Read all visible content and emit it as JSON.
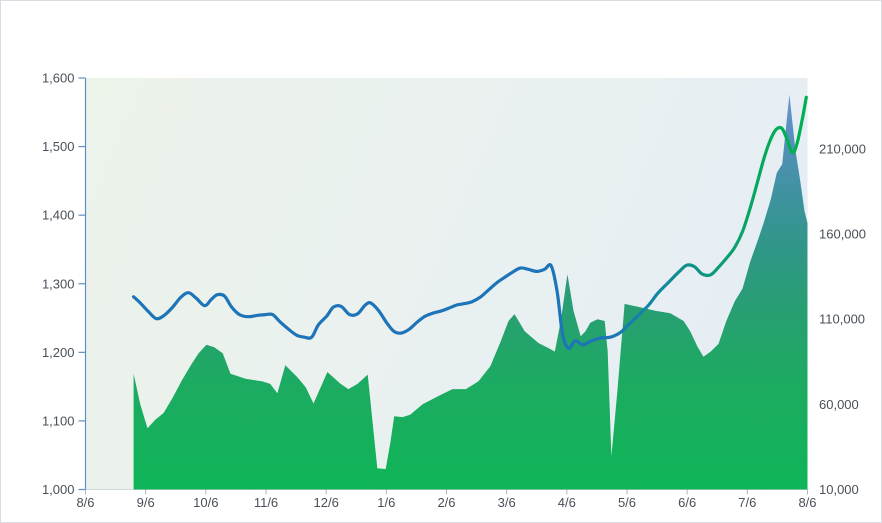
{
  "chart_data": {
    "type": "combo",
    "title": "",
    "subtitle": "",
    "legend": null,
    "grid": false,
    "x_axis": {
      "min": 0,
      "max": 12,
      "tick_labels": [
        "8/6",
        "9/6",
        "10/6",
        "11/6",
        "12/6",
        "1/6",
        "2/6",
        "3/6",
        "4/6",
        "5/6",
        "6/6",
        "7/6",
        "8/6"
      ]
    },
    "left_axis": {
      "min": 1000,
      "max": 1600,
      "ticks": [
        {
          "v": 1000,
          "label": "1,000"
        },
        {
          "v": 1100,
          "label": "1,100"
        },
        {
          "v": 1200,
          "label": "1,200"
        },
        {
          "v": 1300,
          "label": "1,300"
        },
        {
          "v": 1400,
          "label": "1,400"
        },
        {
          "v": 1500,
          "label": "1,500"
        },
        {
          "v": 1600,
          "label": "1,600"
        }
      ]
    },
    "right_axis": {
      "min": 10000,
      "top_value": 251700,
      "ticks": [
        {
          "v": 10000,
          "label": "10,000"
        },
        {
          "v": 60000,
          "label": "60,000"
        },
        {
          "v": 110000,
          "label": "110,000"
        },
        {
          "v": 160000,
          "label": "160,000"
        },
        {
          "v": 210000,
          "label": "210,000"
        }
      ]
    },
    "series": [
      {
        "name": "volume-area",
        "type": "area",
        "axis": "right",
        "smooth": false,
        "points": [
          [
            0.8,
            78000
          ],
          [
            0.91,
            60000
          ],
          [
            1.03,
            46000
          ],
          [
            1.16,
            51000
          ],
          [
            1.3,
            55000
          ],
          [
            1.45,
            64000
          ],
          [
            1.6,
            74000
          ],
          [
            1.75,
            83000
          ],
          [
            1.88,
            90000
          ],
          [
            2.01,
            95000
          ],
          [
            2.14,
            93500
          ],
          [
            2.28,
            90000
          ],
          [
            2.41,
            78000
          ],
          [
            2.66,
            75000
          ],
          [
            2.94,
            73500
          ],
          [
            3.07,
            72000
          ],
          [
            3.19,
            66500
          ],
          [
            3.32,
            83000
          ],
          [
            3.52,
            76000
          ],
          [
            3.66,
            70000
          ],
          [
            3.79,
            60500
          ],
          [
            4.02,
            79000
          ],
          [
            4.24,
            72000
          ],
          [
            4.37,
            69000
          ],
          [
            4.52,
            72000
          ],
          [
            4.69,
            77500
          ],
          [
            4.77,
            50000
          ],
          [
            4.85,
            22500
          ],
          [
            4.99,
            22000
          ],
          [
            5.07,
            38000
          ],
          [
            5.13,
            53000
          ],
          [
            5.27,
            52500
          ],
          [
            5.4,
            54000
          ],
          [
            5.6,
            60000
          ],
          [
            5.87,
            65000
          ],
          [
            6.1,
            69000
          ],
          [
            6.32,
            69000
          ],
          [
            6.53,
            73500
          ],
          [
            6.73,
            82500
          ],
          [
            6.9,
            97000
          ],
          [
            7.03,
            109000
          ],
          [
            7.13,
            113000
          ],
          [
            7.3,
            103000
          ],
          [
            7.53,
            96000
          ],
          [
            7.7,
            93000
          ],
          [
            7.8,
            91000
          ],
          [
            7.9,
            109000
          ],
          [
            8.01,
            136500
          ],
          [
            8.11,
            115000
          ],
          [
            8.23,
            100000
          ],
          [
            8.31,
            103000
          ],
          [
            8.39,
            108000
          ],
          [
            8.51,
            110000
          ],
          [
            8.63,
            109000
          ],
          [
            8.68,
            91000
          ],
          [
            8.74,
            29500
          ],
          [
            8.84,
            68000
          ],
          [
            8.96,
            119000
          ],
          [
            9.22,
            117000
          ],
          [
            9.47,
            115000
          ],
          [
            9.72,
            113500
          ],
          [
            9.94,
            109000
          ],
          [
            10.05,
            103000
          ],
          [
            10.17,
            94000
          ],
          [
            10.27,
            88000
          ],
          [
            10.39,
            91000
          ],
          [
            10.52,
            95500
          ],
          [
            10.65,
            109000
          ],
          [
            10.79,
            120500
          ],
          [
            10.92,
            128000
          ],
          [
            11.05,
            144000
          ],
          [
            11.17,
            156000
          ],
          [
            11.27,
            166500
          ],
          [
            11.39,
            180500
          ],
          [
            11.49,
            196000
          ],
          [
            11.58,
            201000
          ],
          [
            11.7,
            242000
          ],
          [
            11.8,
            209000
          ],
          [
            11.88,
            191000
          ],
          [
            11.95,
            173500
          ],
          [
            12.0,
            166500
          ]
        ]
      },
      {
        "name": "price-line",
        "type": "line",
        "axis": "left",
        "smooth": true,
        "stroke_width": 3.2,
        "points": [
          [
            0.8,
            1281
          ],
          [
            0.91,
            1272
          ],
          [
            1.05,
            1259
          ],
          [
            1.18,
            1249
          ],
          [
            1.31,
            1254
          ],
          [
            1.45,
            1266
          ],
          [
            1.58,
            1280
          ],
          [
            1.71,
            1287
          ],
          [
            1.84,
            1279
          ],
          [
            1.98,
            1268
          ],
          [
            2.09,
            1277
          ],
          [
            2.19,
            1284
          ],
          [
            2.31,
            1282
          ],
          [
            2.43,
            1266
          ],
          [
            2.56,
            1255
          ],
          [
            2.71,
            1252
          ],
          [
            2.86,
            1254
          ],
          [
            2.99,
            1255
          ],
          [
            3.11,
            1255
          ],
          [
            3.24,
            1244
          ],
          [
            3.37,
            1234
          ],
          [
            3.51,
            1225
          ],
          [
            3.64,
            1222
          ],
          [
            3.76,
            1222
          ],
          [
            3.87,
            1240
          ],
          [
            4.01,
            1253
          ],
          [
            4.12,
            1266
          ],
          [
            4.25,
            1267
          ],
          [
            4.39,
            1255
          ],
          [
            4.52,
            1256
          ],
          [
            4.65,
            1269
          ],
          [
            4.74,
            1272
          ],
          [
            4.87,
            1261
          ],
          [
            5.0,
            1244
          ],
          [
            5.12,
            1231
          ],
          [
            5.24,
            1228
          ],
          [
            5.37,
            1233
          ],
          [
            5.5,
            1243
          ],
          [
            5.63,
            1252
          ],
          [
            5.77,
            1257
          ],
          [
            5.9,
            1260
          ],
          [
            6.03,
            1264
          ],
          [
            6.17,
            1269
          ],
          [
            6.3,
            1271
          ],
          [
            6.43,
            1274
          ],
          [
            6.57,
            1281
          ],
          [
            6.7,
            1291
          ],
          [
            6.83,
            1301
          ],
          [
            6.96,
            1309
          ],
          [
            7.1,
            1317
          ],
          [
            7.23,
            1323
          ],
          [
            7.36,
            1321
          ],
          [
            7.5,
            1318
          ],
          [
            7.63,
            1321
          ],
          [
            7.74,
            1326
          ],
          [
            7.84,
            1288
          ],
          [
            7.93,
            1226
          ],
          [
            8.03,
            1206
          ],
          [
            8.14,
            1217
          ],
          [
            8.26,
            1211
          ],
          [
            8.39,
            1216
          ],
          [
            8.56,
            1221
          ],
          [
            8.72,
            1222
          ],
          [
            8.89,
            1229
          ],
          [
            9.02,
            1240
          ],
          [
            9.19,
            1254
          ],
          [
            9.36,
            1269
          ],
          [
            9.52,
            1287
          ],
          [
            9.69,
            1302
          ],
          [
            9.86,
            1317
          ],
          [
            9.99,
            1327
          ],
          [
            10.12,
            1325
          ],
          [
            10.25,
            1314
          ],
          [
            10.39,
            1313
          ],
          [
            10.52,
            1324
          ],
          [
            10.65,
            1337
          ],
          [
            10.79,
            1353
          ],
          [
            10.92,
            1376
          ],
          [
            11.05,
            1411
          ],
          [
            11.17,
            1449
          ],
          [
            11.27,
            1481
          ],
          [
            11.37,
            1507
          ],
          [
            11.47,
            1524
          ],
          [
            11.57,
            1527
          ],
          [
            11.65,
            1513
          ],
          [
            11.75,
            1491
          ],
          [
            11.83,
            1506
          ],
          [
            11.92,
            1543
          ],
          [
            11.98,
            1572
          ]
        ]
      }
    ],
    "colors": {
      "line_gradient": [
        [
          0.0,
          "#1d74b9"
        ],
        [
          0.7,
          "#1d74b9"
        ],
        [
          0.78,
          "#1387a0"
        ],
        [
          0.84,
          "#0d9581"
        ],
        [
          0.9,
          "#09a369"
        ],
        [
          0.955,
          "#02ad52"
        ],
        [
          1.0,
          "#00b050"
        ]
      ],
      "area_gradient": [
        [
          0.0,
          "#6f9cd1"
        ],
        [
          0.12,
          "#5a8fc2"
        ],
        [
          0.28,
          "#3f92a0"
        ],
        [
          0.42,
          "#2f9787"
        ],
        [
          0.58,
          "#27a070"
        ],
        [
          0.75,
          "#1cab61"
        ],
        [
          1.0,
          "#0fb557"
        ]
      ],
      "plot_bg_gradient": [
        [
          0.0,
          "#ecf3e9"
        ],
        [
          0.5,
          "#eaf1ef"
        ],
        [
          1.0,
          "#e6eef5"
        ]
      ],
      "axis_line": "#5e8fc6",
      "x_tick": "#b2b8be",
      "baseline": "#d2d8dd",
      "label": "#495059",
      "frame_border": "#d9dde3"
    }
  }
}
